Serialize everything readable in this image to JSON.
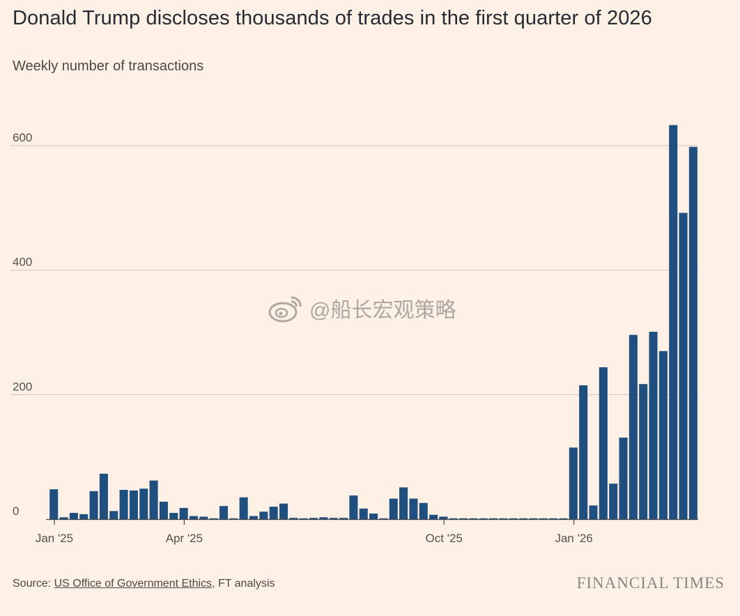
{
  "header": {
    "title": "Donald Trump discloses thousands of trades in the first quarter of 2026",
    "subtitle": "Weekly number of transactions"
  },
  "footer": {
    "source_prefix": "Source: ",
    "source_link": "US Office of Government Ethics",
    "source_suffix": ", FT analysis",
    "brand": "FINANCIAL TIMES"
  },
  "watermark": {
    "text": "@船长宏观策略",
    "icon": "weibo-icon"
  },
  "colors": {
    "bar": "#1e4f7f",
    "grid": "#cfc4bb",
    "background": "#fdf0e5"
  },
  "chart_data": {
    "type": "bar",
    "title": "Donald Trump discloses thousands of trades in the first quarter of 2026",
    "ylabel": "Weekly number of transactions",
    "ylim": [
      0,
      650
    ],
    "yticks": [
      0,
      200,
      400,
      600
    ],
    "grid": true,
    "x_tick_labels": [
      {
        "label": "Jan '25",
        "week": 0
      },
      {
        "label": "Apr '25",
        "week": 13
      },
      {
        "label": "Oct '25",
        "week": 39
      },
      {
        "label": "Jan '26",
        "week": 52
      }
    ],
    "values": [
      48,
      3,
      10,
      8,
      45,
      73,
      13,
      47,
      46,
      49,
      62,
      28,
      10,
      18,
      5,
      4,
      0,
      21,
      0,
      35,
      5,
      12,
      20,
      25,
      2,
      0,
      2,
      3,
      2,
      2,
      38,
      17,
      9,
      0,
      33,
      51,
      33,
      26,
      7,
      4,
      1,
      1,
      1,
      1,
      1,
      1,
      1,
      1,
      1,
      1,
      1,
      1,
      115,
      215,
      22,
      244,
      57,
      131,
      296,
      217,
      301,
      270,
      633,
      492,
      598
    ]
  }
}
